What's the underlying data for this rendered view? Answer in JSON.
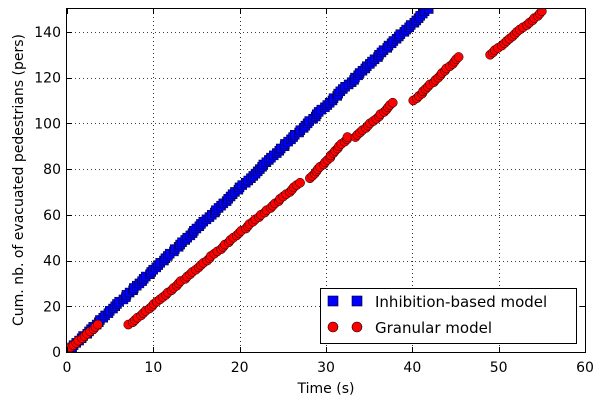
{
  "chart_data": {
    "type": "scatter",
    "title": "",
    "xlabel": "Time (s)",
    "ylabel": "Cum. nb. of evacuated pedestrians (pers)",
    "xlim": [
      0,
      60
    ],
    "ylim": [
      0,
      150
    ],
    "xticks": [
      "0",
      "10",
      "20",
      "30",
      "40",
      "50",
      "60"
    ],
    "yticks": [
      "0",
      "20",
      "40",
      "60",
      "80",
      "100",
      "120",
      "140"
    ],
    "grid": true,
    "legend_position": "lower-right",
    "series": [
      {
        "name": "Inhibition-based model",
        "marker": "square",
        "color": "#0000ff",
        "segments": [
          {
            "t_start": 0.3,
            "t_end": 41.8,
            "n_start": 1,
            "n_end": 150
          }
        ]
      },
      {
        "name": "Granular model",
        "marker": "circle",
        "color": "#ff0000",
        "segments": [
          {
            "t_start": 0.2,
            "t_end": 3.6,
            "n_start": 1,
            "n_end": 12
          },
          {
            "t_start": 7.2,
            "t_end": 27.0,
            "n_start": 12,
            "n_end": 74
          },
          {
            "t_start": 28.2,
            "t_end": 32.6,
            "n_start": 76,
            "n_end": 94
          },
          {
            "t_start": 33.4,
            "t_end": 37.8,
            "n_start": 94,
            "n_end": 109
          },
          {
            "t_start": 40.2,
            "t_end": 45.4,
            "n_start": 110,
            "n_end": 129
          },
          {
            "t_start": 49.0,
            "t_end": 55.1,
            "n_start": 130,
            "n_end": 149
          }
        ]
      }
    ]
  }
}
